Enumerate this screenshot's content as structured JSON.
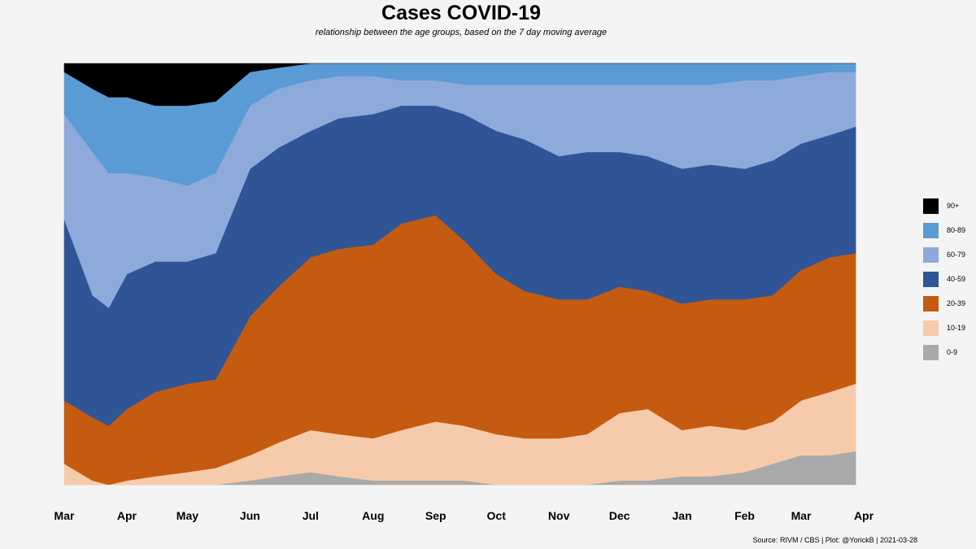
{
  "chart_data": {
    "type": "area",
    "stacked": true,
    "normalized": true,
    "title": "Cases COVID-19",
    "subtitle": "relationship between the age groups, based on the 7 day moving average",
    "caption": "Source: RIVM / CBS | Plot: @YorickB |  2021-03-28",
    "xlabel": "",
    "ylabel": "",
    "ylim": [
      0,
      1
    ],
    "x_ticks": [
      "Mar",
      "Apr",
      "May",
      "Jun",
      "Jul",
      "Aug",
      "Sep",
      "Oct",
      "Nov",
      "Dec",
      "Jan",
      "Feb",
      "Mar",
      "Apr"
    ],
    "x_tick_days": [
      0,
      31,
      61,
      92,
      122,
      153,
      184,
      214,
      245,
      275,
      306,
      337,
      365,
      396
    ],
    "x_range_days": [
      0,
      396
    ],
    "x_description": "days since 2020-03-01",
    "dates": [
      "2020-03-01",
      "2020-03-15",
      "2020-03-23",
      "2020-04-01",
      "2020-04-15",
      "2020-05-01",
      "2020-05-15",
      "2020-06-01",
      "2020-06-15",
      "2020-07-01",
      "2020-07-15",
      "2020-08-01",
      "2020-08-15",
      "2020-09-01",
      "2020-09-15",
      "2020-10-01",
      "2020-10-15",
      "2020-11-01",
      "2020-11-15",
      "2020-12-01",
      "2020-12-15",
      "2021-01-01",
      "2021-01-15",
      "2021-02-01",
      "2021-02-15",
      "2021-03-01",
      "2021-03-15",
      "2021-03-28"
    ],
    "x": [
      0,
      14,
      22,
      31,
      45,
      61,
      75,
      92,
      106,
      122,
      136,
      153,
      167,
      184,
      198,
      214,
      228,
      245,
      259,
      275,
      289,
      306,
      320,
      337,
      351,
      365,
      379,
      392
    ],
    "boundary_order": "cumulative share from the bottom: top of 0-9, top of 10-19, top of 20-39, top of 40-59, top of 60-79, top of 80-89; 90+ fills to 1",
    "boundaries": [
      [
        0.0,
        0.0,
        0.0,
        0.0,
        0.0,
        0.0,
        0.0,
        0.01,
        0.02,
        0.03,
        0.02,
        0.01,
        0.01,
        0.01,
        0.01,
        0.0,
        0.0,
        0.0,
        0.0,
        0.01,
        0.01,
        0.02,
        0.02,
        0.03,
        0.05,
        0.07,
        0.07,
        0.08
      ],
      [
        0.05,
        0.01,
        0.0,
        0.01,
        0.02,
        0.03,
        0.04,
        0.07,
        0.1,
        0.13,
        0.12,
        0.11,
        0.13,
        0.15,
        0.14,
        0.12,
        0.11,
        0.11,
        0.12,
        0.17,
        0.18,
        0.13,
        0.14,
        0.13,
        0.15,
        0.2,
        0.22,
        0.24
      ],
      [
        0.2,
        0.16,
        0.14,
        0.18,
        0.22,
        0.24,
        0.25,
        0.4,
        0.47,
        0.54,
        0.56,
        0.57,
        0.62,
        0.64,
        0.58,
        0.5,
        0.46,
        0.44,
        0.44,
        0.47,
        0.46,
        0.43,
        0.44,
        0.44,
        0.45,
        0.51,
        0.54,
        0.55
      ],
      [
        0.63,
        0.45,
        0.42,
        0.5,
        0.53,
        0.53,
        0.55,
        0.75,
        0.8,
        0.84,
        0.87,
        0.88,
        0.9,
        0.9,
        0.88,
        0.84,
        0.82,
        0.78,
        0.79,
        0.79,
        0.78,
        0.75,
        0.76,
        0.75,
        0.77,
        0.81,
        0.83,
        0.85
      ],
      [
        0.88,
        0.79,
        0.74,
        0.74,
        0.73,
        0.71,
        0.74,
        0.9,
        0.94,
        0.96,
        0.97,
        0.97,
        0.96,
        0.96,
        0.95,
        0.95,
        0.95,
        0.95,
        0.95,
        0.95,
        0.95,
        0.95,
        0.95,
        0.96,
        0.96,
        0.97,
        0.98,
        0.98
      ],
      [
        0.98,
        0.94,
        0.92,
        0.92,
        0.9,
        0.9,
        0.91,
        0.98,
        0.99,
        1.0,
        1.0,
        1.0,
        1.0,
        1.0,
        1.0,
        1.0,
        1.0,
        1.0,
        1.0,
        1.0,
        1.0,
        1.0,
        1.0,
        1.0,
        1.0,
        1.0,
        1.0,
        1.0
      ]
    ],
    "series": [
      {
        "name": "0-9",
        "color": "#a9a9a9"
      },
      {
        "name": "10-19",
        "color": "#f6cbab"
      },
      {
        "name": "20-39",
        "color": "#c55b11"
      },
      {
        "name": "40-59",
        "color": "#2f5597"
      },
      {
        "name": "60-79",
        "color": "#8eaadb"
      },
      {
        "name": "80-89",
        "color": "#5b9bd5"
      },
      {
        "name": "90+",
        "color": "#000000"
      }
    ],
    "legend": {
      "placement": "right",
      "order": [
        "90+",
        "80-89",
        "60-79",
        "40-59",
        "20-39",
        "10-19",
        "0-9"
      ]
    }
  }
}
